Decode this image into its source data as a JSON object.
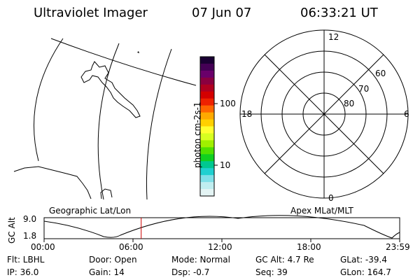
{
  "header": {
    "instrument": "Ultraviolet Imager",
    "date": "07 Jun 07",
    "time": "06:33:21 UT"
  },
  "colorbar": {
    "unit_label": "photon cm-2s-1",
    "ticks": [
      "100",
      "10"
    ],
    "colors": [
      "#1a0033",
      "#440055",
      "#6a006a",
      "#8a0040",
      "#b00020",
      "#d40000",
      "#ee2200",
      "#ff6600",
      "#ffaa00",
      "#ffd000",
      "#ffff30",
      "#d8ff20",
      "#a0f000",
      "#50e000",
      "#10d020",
      "#00c890",
      "#20d0d0",
      "#80e0e8",
      "#c0eef0",
      "#e4f4f4"
    ]
  },
  "polar": {
    "clock_labels": {
      "top": "12",
      "left": "18",
      "right": "6",
      "bottom": "0"
    },
    "lat_labels": [
      "60",
      "70",
      "80"
    ]
  },
  "timeline": {
    "axis_label": "GC Alt",
    "y_top": "9.0",
    "y_bottom": "1.8",
    "left_title": "Geographic Lat/Lon",
    "right_title": "Apex MLat/MLT",
    "x_ticks": [
      "00:00",
      "06:00",
      "12:00",
      "18:00",
      "23:59"
    ],
    "current_time_fraction": 0.273,
    "marker_color": "#cc0000"
  },
  "info": {
    "flt": "Flt: LBHL",
    "ip": "IP: 36.0",
    "door": "Door: Open",
    "gain": "Gain: 14",
    "mode": "Mode: Normal",
    "dsp": "Dsp:   -0.7",
    "gc_alt": "GC Alt: 4.7 Re",
    "seq": "Seq: 39",
    "glat": "GLat: -39.4",
    "glon": "GLon: 164.7"
  }
}
